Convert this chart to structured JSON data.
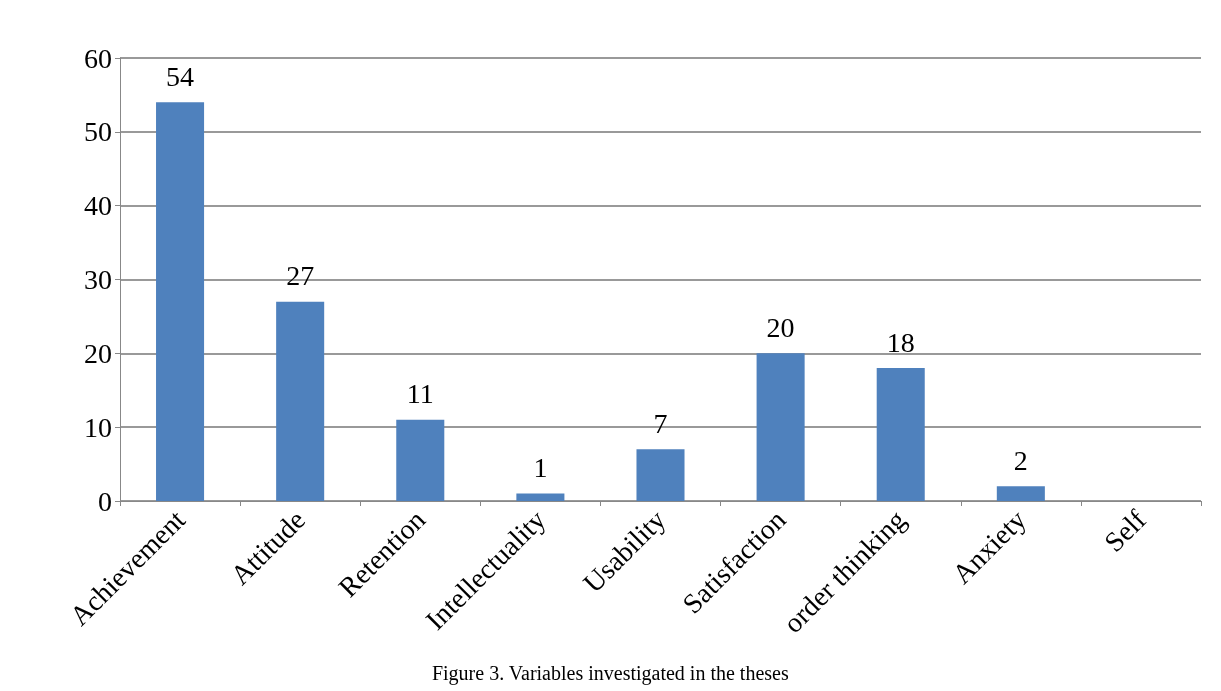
{
  "chart_data": {
    "type": "bar",
    "categories": [
      "Achievement",
      "Attitude",
      "Retention",
      "Intellectuality",
      "Usability",
      "Satisfaction",
      "order thinking",
      "Anxiety",
      "Self"
    ],
    "values": [
      54,
      27,
      11,
      1,
      7,
      20,
      18,
      2,
      null
    ],
    "color": "#4f81bd",
    "ylim": [
      0,
      60
    ],
    "yticks": [
      0,
      10,
      20,
      30,
      40,
      50,
      60
    ],
    "grid": "y",
    "data_labels": true,
    "annotations": [
      "Figure 3. Variables investigated in the theses"
    ]
  }
}
